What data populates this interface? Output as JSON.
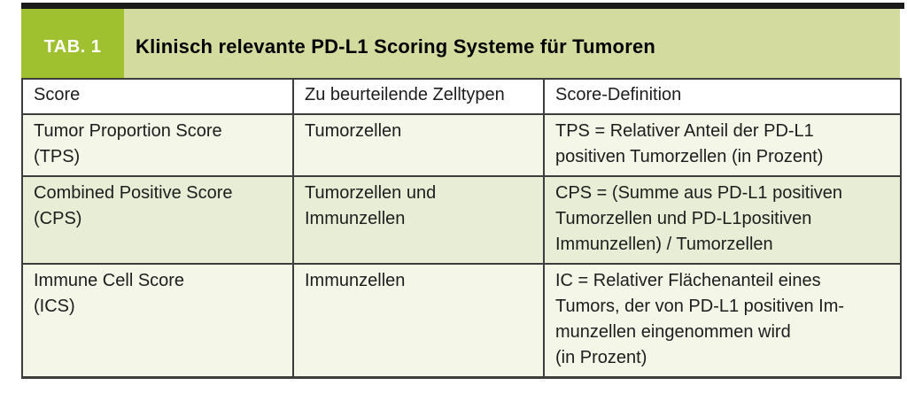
{
  "header": {
    "tab_label": "TAB. 1",
    "title": "Klinisch relevante PD-L1 Scoring Systeme für Tumoren"
  },
  "table": {
    "columns": [
      "Score",
      "Zu beurteilende Zelltypen",
      "Score-Definition"
    ],
    "rows": [
      {
        "score": "Tumor Proportion Score\n(TPS)",
        "cell_types": "Tumorzellen",
        "definition": "TPS = Relativer Anteil der PD-L1\npositiven Tumorzellen (in Prozent)"
      },
      {
        "score": "Combined Positive Score\n(CPS)",
        "cell_types": "Tumorzellen und\nImmunzellen",
        "definition": "CPS = (Summe aus PD-L1 positiven\nTumorzellen und PD-L1positiven\nImmunzellen) / Tumorzellen"
      },
      {
        "score": "Immune Cell Score\n(ICS)",
        "cell_types": "Immunzellen",
        "definition": "IC = Relativer Flächenanteil eines\nTumors, der von PD-L1 positiven Im-\nmunzellen eingenommen wird\n(in Prozent)"
      }
    ]
  },
  "colors": {
    "top_bar": "#1a1a1a",
    "badge_bg": "#9fc02f",
    "band_bg": "#d3dc9e",
    "header_row_bg": "#ffffff",
    "row_light": "#f4f6e8",
    "row_medium": "#e8eed6",
    "border": "#3d3d3d",
    "text": "#1d1d1d",
    "badge_text": "#ffffff"
  }
}
